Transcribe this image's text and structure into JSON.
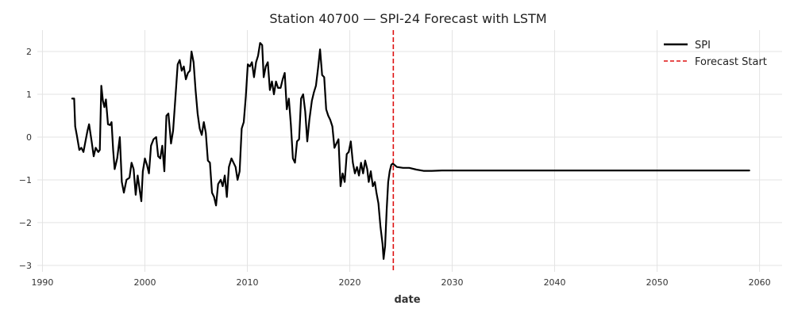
{
  "chart_data": {
    "type": "line",
    "title": "Station 40700 — SPI-24 Forecast with LSTM",
    "xlabel": "date",
    "ylabel": "",
    "xlim": [
      1989.5,
      2062.2
    ],
    "ylim": [
      -3.15,
      2.5
    ],
    "x_ticks": [
      1990,
      2000,
      2010,
      2020,
      2030,
      2040,
      2050,
      2060
    ],
    "y_ticks": [
      -3,
      -2,
      -1,
      0,
      1,
      2
    ],
    "x_tick_labels": [
      "1990",
      "2000",
      "2010",
      "2020",
      "2030",
      "2040",
      "2050",
      "2060"
    ],
    "y_tick_labels": [
      "−3",
      "−2",
      "−1",
      "0",
      "1",
      "2"
    ],
    "grid": true,
    "legend_position": "top-right",
    "series": [
      {
        "name": "SPI",
        "color": "#000000",
        "style": "solid",
        "points": [
          [
            1992.9,
            0.9
          ],
          [
            1993.1,
            0.9
          ],
          [
            1993.2,
            0.25
          ],
          [
            1993.35,
            0.05
          ],
          [
            1993.6,
            -0.3
          ],
          [
            1993.8,
            -0.25
          ],
          [
            1994.0,
            -0.35
          ],
          [
            1994.2,
            -0.1
          ],
          [
            1994.4,
            0.15
          ],
          [
            1994.55,
            0.3
          ],
          [
            1994.8,
            -0.1
          ],
          [
            1995.0,
            -0.45
          ],
          [
            1995.2,
            -0.25
          ],
          [
            1995.45,
            -0.35
          ],
          [
            1995.6,
            -0.3
          ],
          [
            1995.75,
            1.2
          ],
          [
            1995.9,
            0.85
          ],
          [
            1996.05,
            0.7
          ],
          [
            1996.2,
            0.88
          ],
          [
            1996.4,
            0.3
          ],
          [
            1996.6,
            0.28
          ],
          [
            1996.75,
            0.35
          ],
          [
            1996.9,
            -0.3
          ],
          [
            1997.05,
            -0.75
          ],
          [
            1997.3,
            -0.5
          ],
          [
            1997.55,
            0.0
          ],
          [
            1997.75,
            -1.05
          ],
          [
            1997.95,
            -1.3
          ],
          [
            1998.2,
            -1.0
          ],
          [
            1998.5,
            -0.95
          ],
          [
            1998.7,
            -0.6
          ],
          [
            1998.9,
            -0.75
          ],
          [
            1999.1,
            -1.35
          ],
          [
            1999.3,
            -0.9
          ],
          [
            1999.5,
            -1.25
          ],
          [
            1999.65,
            -1.5
          ],
          [
            1999.8,
            -0.8
          ],
          [
            2000.0,
            -0.5
          ],
          [
            2000.2,
            -0.65
          ],
          [
            2000.4,
            -0.85
          ],
          [
            2000.6,
            -0.2
          ],
          [
            2000.85,
            -0.05
          ],
          [
            2001.1,
            0.0
          ],
          [
            2001.3,
            -0.45
          ],
          [
            2001.5,
            -0.5
          ],
          [
            2001.7,
            -0.2
          ],
          [
            2001.9,
            -0.8
          ],
          [
            2002.1,
            0.5
          ],
          [
            2002.3,
            0.55
          ],
          [
            2002.55,
            -0.15
          ],
          [
            2002.75,
            0.15
          ],
          [
            2003.0,
            1.0
          ],
          [
            2003.2,
            1.7
          ],
          [
            2003.4,
            1.8
          ],
          [
            2003.6,
            1.55
          ],
          [
            2003.8,
            1.65
          ],
          [
            2004.0,
            1.35
          ],
          [
            2004.2,
            1.5
          ],
          [
            2004.4,
            1.55
          ],
          [
            2004.55,
            2.0
          ],
          [
            2004.75,
            1.75
          ],
          [
            2004.95,
            1.1
          ],
          [
            2005.15,
            0.55
          ],
          [
            2005.35,
            0.2
          ],
          [
            2005.55,
            0.05
          ],
          [
            2005.75,
            0.35
          ],
          [
            2005.95,
            0.1
          ],
          [
            2006.15,
            -0.55
          ],
          [
            2006.35,
            -0.6
          ],
          [
            2006.55,
            -1.3
          ],
          [
            2006.75,
            -1.4
          ],
          [
            2006.95,
            -1.6
          ],
          [
            2007.15,
            -1.1
          ],
          [
            2007.4,
            -1.0
          ],
          [
            2007.6,
            -1.15
          ],
          [
            2007.8,
            -0.9
          ],
          [
            2008.0,
            -1.4
          ],
          [
            2008.2,
            -0.7
          ],
          [
            2008.45,
            -0.5
          ],
          [
            2008.65,
            -0.6
          ],
          [
            2008.85,
            -0.7
          ],
          [
            2009.05,
            -1.0
          ],
          [
            2009.25,
            -0.8
          ],
          [
            2009.45,
            0.2
          ],
          [
            2009.65,
            0.35
          ],
          [
            2009.85,
            0.95
          ],
          [
            2010.05,
            1.7
          ],
          [
            2010.25,
            1.65
          ],
          [
            2010.45,
            1.75
          ],
          [
            2010.65,
            1.4
          ],
          [
            2010.85,
            1.75
          ],
          [
            2011.05,
            1.9
          ],
          [
            2011.25,
            2.2
          ],
          [
            2011.45,
            2.15
          ],
          [
            2011.6,
            1.4
          ],
          [
            2011.8,
            1.65
          ],
          [
            2012.0,
            1.75
          ],
          [
            2012.2,
            1.1
          ],
          [
            2012.4,
            1.3
          ],
          [
            2012.6,
            1.0
          ],
          [
            2012.8,
            1.3
          ],
          [
            2013.0,
            1.15
          ],
          [
            2013.25,
            1.15
          ],
          [
            2013.45,
            1.35
          ],
          [
            2013.65,
            1.5
          ],
          [
            2013.85,
            0.65
          ],
          [
            2014.05,
            0.9
          ],
          [
            2014.25,
            0.3
          ],
          [
            2014.45,
            -0.5
          ],
          [
            2014.65,
            -0.6
          ],
          [
            2014.85,
            -0.1
          ],
          [
            2015.05,
            -0.05
          ],
          [
            2015.25,
            0.9
          ],
          [
            2015.45,
            1.0
          ],
          [
            2015.65,
            0.6
          ],
          [
            2015.85,
            -0.1
          ],
          [
            2016.05,
            0.4
          ],
          [
            2016.3,
            0.85
          ],
          [
            2016.5,
            1.05
          ],
          [
            2016.7,
            1.2
          ],
          [
            2016.9,
            1.6
          ],
          [
            2017.1,
            2.05
          ],
          [
            2017.3,
            1.45
          ],
          [
            2017.5,
            1.4
          ],
          [
            2017.7,
            0.65
          ],
          [
            2017.9,
            0.5
          ],
          [
            2018.1,
            0.4
          ],
          [
            2018.3,
            0.25
          ],
          [
            2018.5,
            -0.25
          ],
          [
            2018.7,
            -0.15
          ],
          [
            2018.9,
            -0.05
          ],
          [
            2019.1,
            -1.15
          ],
          [
            2019.3,
            -0.85
          ],
          [
            2019.5,
            -1.05
          ],
          [
            2019.7,
            -0.4
          ],
          [
            2019.9,
            -0.35
          ],
          [
            2020.1,
            -0.1
          ],
          [
            2020.3,
            -0.6
          ],
          [
            2020.5,
            -0.85
          ],
          [
            2020.7,
            -0.7
          ],
          [
            2020.9,
            -0.9
          ],
          [
            2021.1,
            -0.6
          ],
          [
            2021.3,
            -0.85
          ],
          [
            2021.5,
            -0.55
          ],
          [
            2021.7,
            -0.75
          ],
          [
            2021.85,
            -1.05
          ],
          [
            2022.05,
            -0.8
          ],
          [
            2022.25,
            -1.15
          ],
          [
            2022.45,
            -1.05
          ],
          [
            2022.6,
            -1.3
          ],
          [
            2022.8,
            -1.55
          ],
          [
            2023.0,
            -2.1
          ],
          [
            2023.2,
            -2.5
          ],
          [
            2023.3,
            -2.85
          ],
          [
            2023.45,
            -2.55
          ],
          [
            2023.6,
            -1.7
          ],
          [
            2023.75,
            -1.05
          ],
          [
            2023.9,
            -0.8
          ],
          [
            2024.05,
            -0.65
          ],
          [
            2024.2,
            -0.62
          ]
        ]
      },
      {
        "name": "",
        "color": "#000000",
        "style": "solid",
        "points": [
          [
            2024.2,
            -0.62
          ],
          [
            2024.6,
            -0.7
          ],
          [
            2025.2,
            -0.72
          ],
          [
            2025.8,
            -0.72
          ],
          [
            2026.5,
            -0.76
          ],
          [
            2027.2,
            -0.79
          ],
          [
            2028.0,
            -0.79
          ],
          [
            2029.0,
            -0.78
          ],
          [
            2030.0,
            -0.78
          ],
          [
            2035.0,
            -0.78
          ],
          [
            2040.0,
            -0.78
          ],
          [
            2045.0,
            -0.78
          ],
          [
            2050.0,
            -0.78
          ],
          [
            2055.0,
            -0.78
          ],
          [
            2059.0,
            -0.78
          ]
        ]
      }
    ],
    "vlines": [
      {
        "name": "Forecast Start",
        "x": 2024.25,
        "color": "#dd1111",
        "style": "dashed"
      }
    ],
    "legend": [
      {
        "label": "SPI",
        "color": "#000000",
        "style": "solid"
      },
      {
        "label": "Forecast Start",
        "color": "#dd1111",
        "style": "dashed"
      }
    ]
  }
}
